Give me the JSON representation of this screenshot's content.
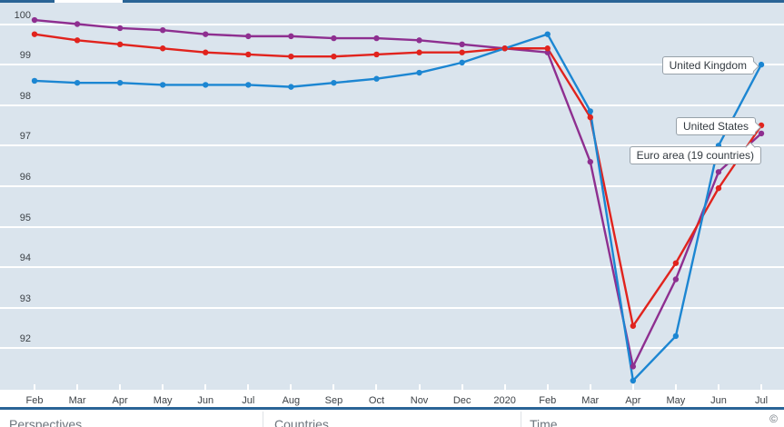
{
  "chart_data": {
    "type": "line",
    "title": "",
    "xlabel": "",
    "ylabel": "",
    "x": [
      "Feb",
      "Mar",
      "Apr",
      "May",
      "Jun",
      "Jul",
      "Aug",
      "Sep",
      "Oct",
      "Nov",
      "Dec",
      "2020",
      "Feb",
      "Mar",
      "Apr",
      "May",
      "Jun",
      "Jul"
    ],
    "y_ticks": [
      100,
      99,
      98,
      97,
      96,
      95,
      94,
      93,
      92
    ],
    "ylim": [
      91.0,
      100.55
    ],
    "grid": true,
    "legend_position": "end-of-line-callouts",
    "series": [
      {
        "name": "Euro area (19 countries)",
        "color": "#8e2f90",
        "values": [
          100.1,
          100.0,
          99.9,
          99.85,
          99.75,
          99.7,
          99.7,
          99.65,
          99.65,
          99.6,
          99.5,
          99.4,
          99.3,
          96.6,
          91.55,
          93.7,
          96.35,
          97.3
        ]
      },
      {
        "name": "United States",
        "color": "#e1231d",
        "values": [
          99.75,
          99.6,
          99.5,
          99.4,
          99.3,
          99.25,
          99.2,
          99.2,
          99.25,
          99.3,
          99.3,
          99.4,
          99.4,
          97.7,
          92.55,
          94.1,
          95.95,
          97.5
        ]
      },
      {
        "name": "United Kingdom",
        "color": "#1c86d2",
        "values": [
          98.6,
          98.55,
          98.55,
          98.5,
          98.5,
          98.5,
          98.45,
          98.55,
          98.65,
          98.8,
          99.05,
          99.4,
          99.75,
          97.85,
          91.2,
          92.3,
          97.0,
          99.0
        ]
      }
    ]
  },
  "callouts": {
    "united_kingdom": "United Kingdom",
    "united_states": "United States",
    "euro_area": "Euro area (19 countries)"
  },
  "footer": {
    "panels": [
      {
        "label": "Perspectives"
      },
      {
        "label": "Countries"
      },
      {
        "label": "Time"
      }
    ],
    "copyright": "©"
  },
  "colors": {
    "plot_background": "#dae4ed",
    "gridline": "#ffffff",
    "top_border": "#2a6496",
    "axis_text": "#3d4247",
    "uk_line": "#1c86d2",
    "us_line": "#e1231d",
    "euro_line": "#8e2f90"
  }
}
